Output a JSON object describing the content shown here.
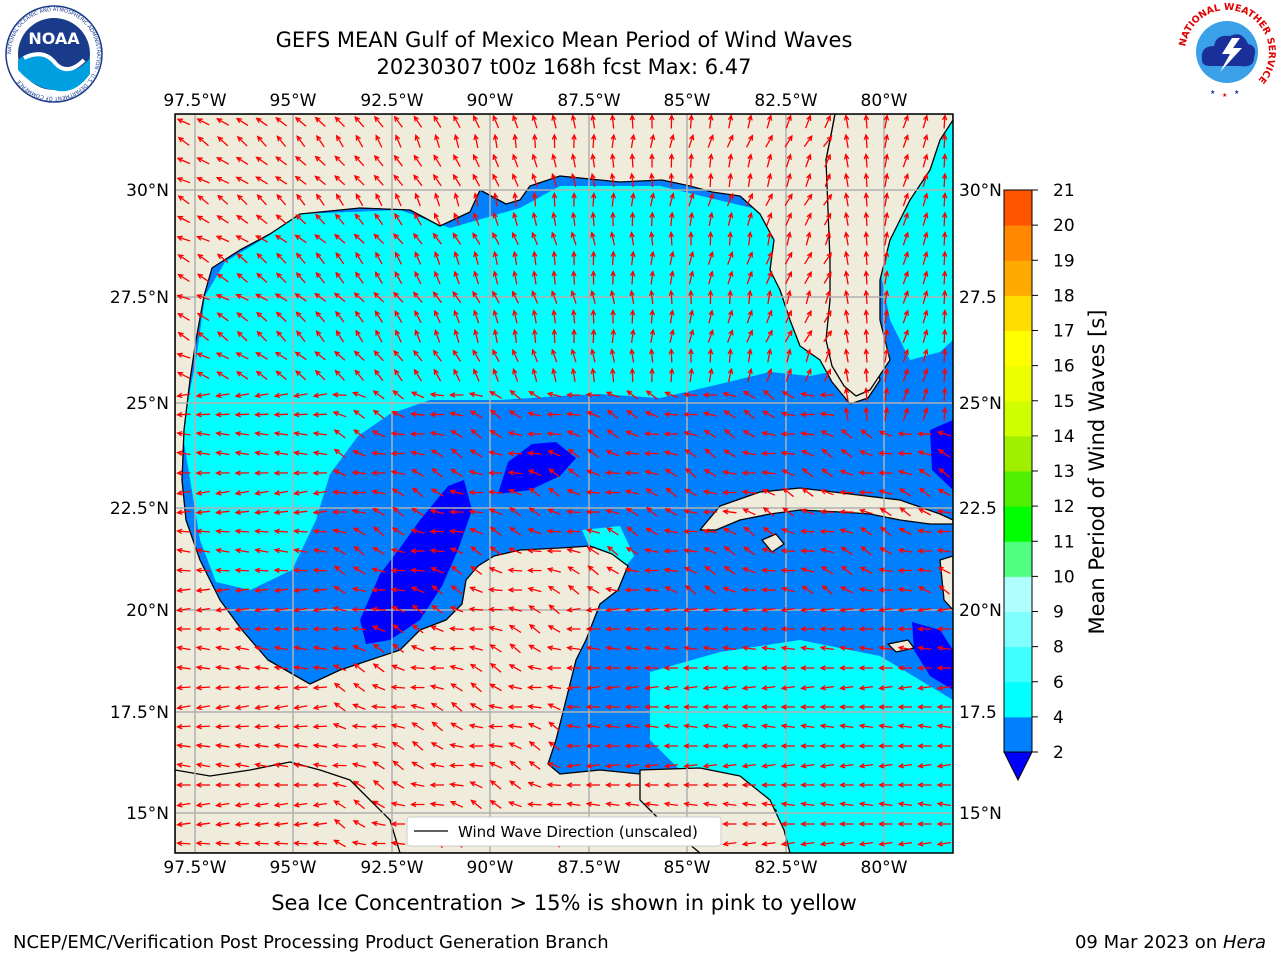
{
  "header": {
    "title_line1": "GEFS MEAN Gulf of Mexico Mean Period of Wind Waves",
    "title_line2": "20230307 t00z 168h fcst   Max: 6.47"
  },
  "logos": {
    "noaa_text": "NOAA",
    "noaa_ring": "NATIONAL OCEANIC AND ATMOSPHERIC ADMINISTRATION · U.S. DEPARTMENT OF COMMERCE",
    "nws_ring": "NATIONAL WEATHER SERVICE"
  },
  "map": {
    "lon_labels": [
      "97.5°W",
      "95°W",
      "92.5°W",
      "90°W",
      "87.5°W",
      "85°W",
      "82.5°W",
      "80°W"
    ],
    "lat_labels_left": [
      "30°N",
      "27.5°N",
      "25°N",
      "22.5°N",
      "20°N",
      "17.5°N",
      "15°N"
    ],
    "lat_labels_right": [
      "30°N",
      "27.5",
      "25°N",
      "22.5",
      "20°N",
      "17.5",
      "15°N"
    ],
    "legend_label": "Wind Wave Direction (unscaled)",
    "colors": {
      "land": "#efecdc",
      "water_cyan": "#00ffff",
      "water_blue": "#0080ff",
      "water_deep": "#0000ff",
      "arrow": "#ff0000",
      "grid": "#b0b0b0"
    }
  },
  "colorbar": {
    "label": "Mean Period of Wind Waves [s]",
    "ticks": [
      "2",
      "4",
      "6",
      "8",
      "9",
      "10",
      "11",
      "12",
      "13",
      "14",
      "15",
      "16",
      "17",
      "18",
      "19",
      "20",
      "21"
    ],
    "colors": [
      "#0080ff",
      "#00ffff",
      "#40ffff",
      "#80ffff",
      "#b0ffff",
      "#50ff80",
      "#00ff00",
      "#50ee00",
      "#a0ee00",
      "#d0ff00",
      "#eeff00",
      "#ffff00",
      "#ffdd00",
      "#ffaa00",
      "#ff8800",
      "#ff5500",
      "#ff2200",
      "#ff0000"
    ],
    "under_color": "#0000ff"
  },
  "bottom": {
    "subtitle": "Sea Ice Concentration > 15% is shown in pink to yellow",
    "footer_left": "NCEP/EMC/Verification Post Processing Product Generation Branch",
    "footer_date": "09 Mar 2023 on ",
    "footer_host": "Hera"
  }
}
